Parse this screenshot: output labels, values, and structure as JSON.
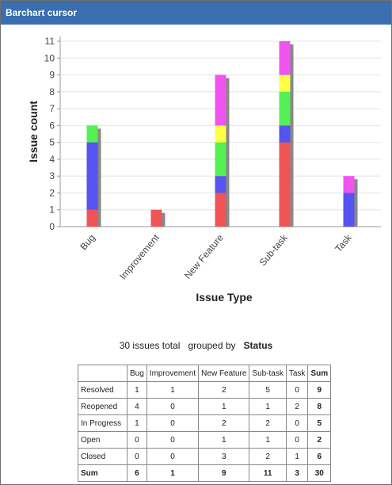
{
  "header": {
    "title": "Barchart cursor"
  },
  "chart_data": {
    "type": "stacked_bar",
    "y_label": "Issue count",
    "x_label": "Issue Type",
    "categories": [
      "Bug",
      "Improvement",
      "New Feature",
      "Sub-task",
      "Task"
    ],
    "series": [
      {
        "name": "Resolved",
        "color": "#f05454",
        "values": [
          1,
          1,
          2,
          5,
          0
        ]
      },
      {
        "name": "Reopened",
        "color": "#5454f0",
        "values": [
          4,
          0,
          1,
          1,
          2
        ]
      },
      {
        "name": "In Progress",
        "color": "#54f054",
        "values": [
          1,
          0,
          2,
          2,
          0
        ]
      },
      {
        "name": "Open",
        "color": "#ffff44",
        "values": [
          0,
          0,
          1,
          1,
          0
        ]
      },
      {
        "name": "Closed",
        "color": "#f054f0",
        "values": [
          0,
          0,
          3,
          2,
          1
        ]
      }
    ],
    "ylim": [
      0,
      11
    ],
    "yticks": [
      0,
      1,
      2,
      3,
      4,
      5,
      6,
      7,
      8,
      9,
      10,
      11
    ],
    "grid": true,
    "legend": "bottom"
  },
  "summary": {
    "total_text": "30 issues total",
    "grouped_by": "grouped by",
    "field": "Status"
  },
  "table": {
    "sum_label": "Sum",
    "row_sums": [
      9,
      8,
      5,
      2,
      6
    ],
    "column_sums": [
      6,
      1,
      9,
      11,
      3
    ],
    "total": 30
  }
}
